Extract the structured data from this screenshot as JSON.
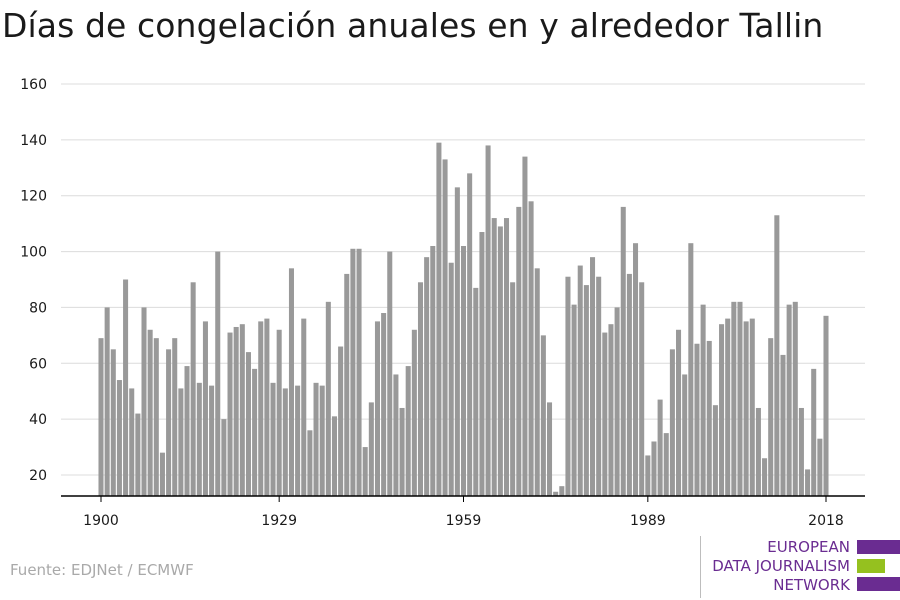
{
  "title": "Días de congelación anuales en y alrededor Tallin",
  "source": "Fuente: EDJNet / ECMWF",
  "logo": {
    "line1": "EUROPEAN",
    "line2": "DATA JOURNALISM",
    "line3": "NETWORK",
    "colors": {
      "purple": "#6a2c91",
      "green": "#95c11f"
    }
  },
  "chart_data": {
    "type": "bar",
    "bar_color": "#999999",
    "x_ticks": [
      1900,
      1929,
      1959,
      1989,
      2018
    ],
    "y_ticks": [
      20,
      40,
      60,
      80,
      100,
      120,
      140,
      160
    ],
    "ylim": [
      12,
      160
    ],
    "grid": "horizontal",
    "x": [
      1900,
      1901,
      1902,
      1903,
      1904,
      1905,
      1906,
      1907,
      1908,
      1909,
      1910,
      1911,
      1912,
      1913,
      1914,
      1915,
      1916,
      1917,
      1918,
      1919,
      1920,
      1921,
      1922,
      1923,
      1924,
      1925,
      1926,
      1927,
      1928,
      1929,
      1930,
      1931,
      1932,
      1933,
      1934,
      1935,
      1936,
      1937,
      1938,
      1939,
      1940,
      1941,
      1942,
      1943,
      1944,
      1945,
      1946,
      1947,
      1948,
      1949,
      1950,
      1951,
      1952,
      1953,
      1954,
      1955,
      1956,
      1957,
      1958,
      1959,
      1960,
      1961,
      1962,
      1963,
      1964,
      1965,
      1966,
      1967,
      1968,
      1969,
      1970,
      1971,
      1972,
      1973,
      1974,
      1975,
      1976,
      1977,
      1978,
      1979,
      1980,
      1981,
      1982,
      1983,
      1984,
      1985,
      1986,
      1987,
      1988,
      1989,
      1990,
      1991,
      1992,
      1993,
      1994,
      1995,
      1996,
      1997,
      1998,
      1999,
      2000,
      2001,
      2002,
      2003,
      2004,
      2005,
      2006,
      2007,
      2008,
      2009,
      2010,
      2011,
      2012,
      2013,
      2014,
      2015,
      2016,
      2017,
      2018
    ],
    "values": [
      69,
      80,
      65,
      54,
      90,
      51,
      42,
      80,
      72,
      69,
      28,
      65,
      69,
      51,
      59,
      89,
      53,
      75,
      52,
      100,
      40,
      71,
      73,
      74,
      64,
      58,
      75,
      76,
      53,
      72,
      51,
      94,
      52,
      76,
      36,
      53,
      52,
      82,
      41,
      66,
      92,
      101,
      101,
      30,
      46,
      75,
      78,
      100,
      56,
      44,
      59,
      72,
      89,
      98,
      102,
      139,
      133,
      96,
      123,
      102,
      128,
      87,
      107,
      138,
      112,
      109,
      112,
      89,
      116,
      134,
      118,
      94,
      70,
      46,
      14,
      16,
      91,
      81,
      95,
      88,
      98,
      91,
      71,
      74,
      80,
      116,
      92,
      103,
      89,
      27,
      32,
      47,
      35,
      65,
      72,
      56,
      103,
      67,
      81,
      68,
      45,
      74,
      76,
      82,
      82,
      75,
      76,
      44,
      26,
      69,
      113,
      63,
      81,
      82,
      44,
      22,
      58,
      33,
      77
    ]
  }
}
